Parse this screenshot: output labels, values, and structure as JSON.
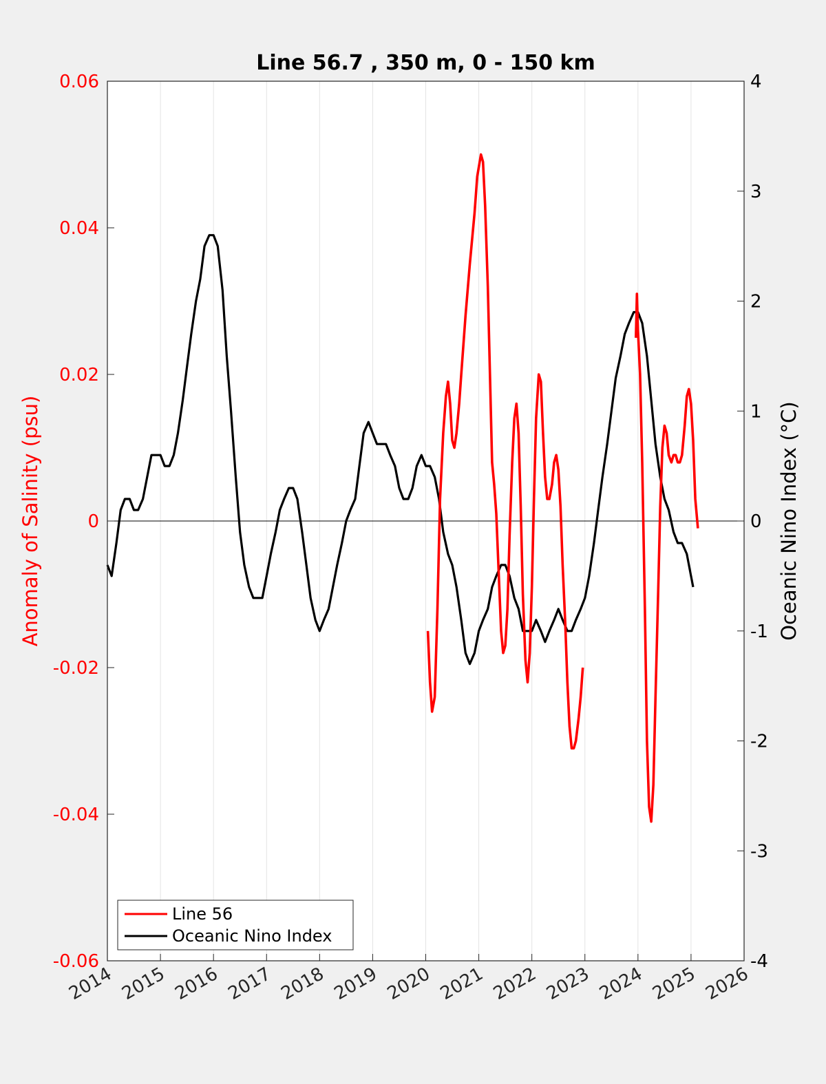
{
  "chart_data": {
    "type": "line",
    "title": "Line 56.7 , 350 m, 0 - 150 km",
    "ylabel_left": "Anomaly of Salinity (psu)",
    "ylabel_right": "Oceanic Nino Index (°C)",
    "xlabel": "",
    "xlim": [
      2014,
      2026
    ],
    "ylim_left": [
      -0.06,
      0.06
    ],
    "ylim_right": [
      -4,
      4
    ],
    "x_ticks": [
      "2014",
      "2015",
      "2016",
      "2017",
      "2018",
      "2019",
      "2020",
      "2021",
      "2022",
      "2023",
      "2024",
      "2025",
      "2026"
    ],
    "y_ticks_left": [
      "0.06",
      "0.04",
      "0.02",
      "0",
      "-0.02",
      "-0.04",
      "-0.06"
    ],
    "y_ticks_right": [
      "4",
      "3",
      "2",
      "1",
      "0",
      "-1",
      "-2",
      "-3",
      "-4"
    ],
    "grid": "vertical",
    "legend_position": "bottom-left",
    "colors": {
      "salinity": "#ff0000",
      "oni": "#000000",
      "left_axis": "#ff0000",
      "right_axis": "#000000",
      "background": "#f0f0f0",
      "plot_area": "#ffffff"
    },
    "series": [
      {
        "name": "Line 56",
        "axis": "left",
        "color": "#ff0000",
        "segments": [
          [
            [
              2020.04,
              -0.015
            ],
            [
              2020.08,
              -0.022
            ],
            [
              2020.12,
              -0.026
            ],
            [
              2020.17,
              -0.024
            ],
            [
              2020.22,
              -0.012
            ],
            [
              2020.27,
              0.003
            ],
            [
              2020.33,
              0.012
            ],
            [
              2020.38,
              0.017
            ],
            [
              2020.42,
              0.019
            ],
            [
              2020.46,
              0.016
            ],
            [
              2020.5,
              0.011
            ],
            [
              2020.54,
              0.01
            ],
            [
              2020.58,
              0.012
            ],
            [
              2020.63,
              0.016
            ],
            [
              2020.67,
              0.02
            ],
            [
              2020.75,
              0.028
            ],
            [
              2020.83,
              0.035
            ],
            [
              2020.92,
              0.042
            ],
            [
              2020.97,
              0.047
            ],
            [
              2021.04,
              0.05
            ],
            [
              2021.08,
              0.049
            ],
            [
              2021.12,
              0.043
            ],
            [
              2021.17,
              0.032
            ],
            [
              2021.21,
              0.02
            ],
            [
              2021.25,
              0.008
            ],
            [
              2021.29,
              0.005
            ],
            [
              2021.33,
              0.001
            ],
            [
              2021.38,
              -0.008
            ],
            [
              2021.42,
              -0.015
            ],
            [
              2021.46,
              -0.018
            ],
            [
              2021.5,
              -0.017
            ],
            [
              2021.54,
              -0.012
            ],
            [
              2021.58,
              -0.002
            ],
            [
              2021.63,
              0.008
            ],
            [
              2021.67,
              0.014
            ],
            [
              2021.71,
              0.016
            ],
            [
              2021.75,
              0.012
            ],
            [
              2021.79,
              0.002
            ],
            [
              2021.83,
              -0.01
            ],
            [
              2021.88,
              -0.019
            ],
            [
              2021.92,
              -0.022
            ],
            [
              2021.96,
              -0.018
            ],
            [
              2022.0,
              -0.009
            ],
            [
              2022.04,
              0.003
            ],
            [
              2022.08,
              0.014
            ],
            [
              2022.13,
              0.02
            ],
            [
              2022.17,
              0.019
            ],
            [
              2022.21,
              0.012
            ],
            [
              2022.25,
              0.006
            ],
            [
              2022.29,
              0.003
            ],
            [
              2022.33,
              0.003
            ],
            [
              2022.38,
              0.005
            ],
            [
              2022.42,
              0.008
            ],
            [
              2022.46,
              0.009
            ],
            [
              2022.5,
              0.007
            ],
            [
              2022.54,
              0.002
            ],
            [
              2022.58,
              -0.006
            ],
            [
              2022.63,
              -0.014
            ],
            [
              2022.67,
              -0.022
            ],
            [
              2022.71,
              -0.028
            ],
            [
              2022.75,
              -0.031
            ],
            [
              2022.79,
              -0.031
            ],
            [
              2022.83,
              -0.03
            ],
            [
              2022.88,
              -0.027
            ],
            [
              2022.92,
              -0.024
            ],
            [
              2022.96,
              -0.02
            ]
          ],
          [
            [
              2023.96,
              0.025
            ],
            [
              2023.98,
              0.031
            ],
            [
              2024.0,
              0.026
            ],
            [
              2024.04,
              0.02
            ],
            [
              2024.08,
              0.008
            ],
            [
              2024.13,
              -0.012
            ],
            [
              2024.17,
              -0.03
            ],
            [
              2024.21,
              -0.039
            ],
            [
              2024.25,
              -0.041
            ],
            [
              2024.29,
              -0.036
            ],
            [
              2024.33,
              -0.024
            ],
            [
              2024.38,
              -0.01
            ],
            [
              2024.42,
              0.002
            ],
            [
              2024.46,
              0.01
            ],
            [
              2024.5,
              0.013
            ],
            [
              2024.54,
              0.012
            ],
            [
              2024.58,
              0.009
            ],
            [
              2024.63,
              0.008
            ],
            [
              2024.67,
              0.009
            ],
            [
              2024.71,
              0.009
            ],
            [
              2024.75,
              0.008
            ],
            [
              2024.79,
              0.008
            ],
            [
              2024.83,
              0.009
            ],
            [
              2024.88,
              0.013
            ],
            [
              2024.92,
              0.017
            ],
            [
              2024.96,
              0.018
            ],
            [
              2025.0,
              0.016
            ],
            [
              2025.04,
              0.011
            ],
            [
              2025.08,
              0.003
            ],
            [
              2025.13,
              -0.001
            ]
          ]
        ]
      },
      {
        "name": "Oceanic Nino Index",
        "axis": "right",
        "color": "#000000",
        "points": [
          [
            2014.0,
            -0.4
          ],
          [
            2014.08,
            -0.5
          ],
          [
            2014.17,
            -0.2
          ],
          [
            2014.25,
            0.1
          ],
          [
            2014.33,
            0.2
          ],
          [
            2014.42,
            0.2
          ],
          [
            2014.5,
            0.1
          ],
          [
            2014.58,
            0.1
          ],
          [
            2014.67,
            0.2
          ],
          [
            2014.75,
            0.4
          ],
          [
            2014.83,
            0.6
          ],
          [
            2014.92,
            0.6
          ],
          [
            2015.0,
            0.6
          ],
          [
            2015.08,
            0.5
          ],
          [
            2015.17,
            0.5
          ],
          [
            2015.25,
            0.6
          ],
          [
            2015.33,
            0.8
          ],
          [
            2015.42,
            1.1
          ],
          [
            2015.5,
            1.4
          ],
          [
            2015.58,
            1.7
          ],
          [
            2015.67,
            2.0
          ],
          [
            2015.75,
            2.2
          ],
          [
            2015.83,
            2.5
          ],
          [
            2015.92,
            2.6
          ],
          [
            2016.0,
            2.6
          ],
          [
            2016.08,
            2.5
          ],
          [
            2016.17,
            2.1
          ],
          [
            2016.25,
            1.5
          ],
          [
            2016.33,
            1.0
          ],
          [
            2016.42,
            0.4
          ],
          [
            2016.5,
            -0.1
          ],
          [
            2016.58,
            -0.4
          ],
          [
            2016.67,
            -0.6
          ],
          [
            2016.75,
            -0.7
          ],
          [
            2016.83,
            -0.7
          ],
          [
            2016.92,
            -0.7
          ],
          [
            2017.0,
            -0.5
          ],
          [
            2017.08,
            -0.3
          ],
          [
            2017.17,
            -0.1
          ],
          [
            2017.25,
            0.1
          ],
          [
            2017.33,
            0.2
          ],
          [
            2017.42,
            0.3
          ],
          [
            2017.5,
            0.3
          ],
          [
            2017.58,
            0.2
          ],
          [
            2017.67,
            -0.1
          ],
          [
            2017.75,
            -0.4
          ],
          [
            2017.83,
            -0.7
          ],
          [
            2017.92,
            -0.9
          ],
          [
            2018.0,
            -1.0
          ],
          [
            2018.08,
            -0.9
          ],
          [
            2018.17,
            -0.8
          ],
          [
            2018.25,
            -0.6
          ],
          [
            2018.33,
            -0.4
          ],
          [
            2018.42,
            -0.2
          ],
          [
            2018.5,
            0.0
          ],
          [
            2018.58,
            0.1
          ],
          [
            2018.67,
            0.2
          ],
          [
            2018.75,
            0.5
          ],
          [
            2018.83,
            0.8
          ],
          [
            2018.92,
            0.9
          ],
          [
            2019.0,
            0.8
          ],
          [
            2019.08,
            0.7
          ],
          [
            2019.17,
            0.7
          ],
          [
            2019.25,
            0.7
          ],
          [
            2019.33,
            0.6
          ],
          [
            2019.42,
            0.5
          ],
          [
            2019.5,
            0.3
          ],
          [
            2019.58,
            0.2
          ],
          [
            2019.67,
            0.2
          ],
          [
            2019.75,
            0.3
          ],
          [
            2019.83,
            0.5
          ],
          [
            2019.92,
            0.6
          ],
          [
            2020.0,
            0.5
          ],
          [
            2020.08,
            0.5
          ],
          [
            2020.17,
            0.4
          ],
          [
            2020.25,
            0.2
          ],
          [
            2020.33,
            -0.1
          ],
          [
            2020.42,
            -0.3
          ],
          [
            2020.5,
            -0.4
          ],
          [
            2020.58,
            -0.6
          ],
          [
            2020.67,
            -0.9
          ],
          [
            2020.75,
            -1.2
          ],
          [
            2020.83,
            -1.3
          ],
          [
            2020.92,
            -1.2
          ],
          [
            2021.0,
            -1.0
          ],
          [
            2021.08,
            -0.9
          ],
          [
            2021.17,
            -0.8
          ],
          [
            2021.25,
            -0.6
          ],
          [
            2021.33,
            -0.5
          ],
          [
            2021.42,
            -0.4
          ],
          [
            2021.5,
            -0.4
          ],
          [
            2021.58,
            -0.5
          ],
          [
            2021.67,
            -0.7
          ],
          [
            2021.75,
            -0.8
          ],
          [
            2021.83,
            -1.0
          ],
          [
            2021.92,
            -1.0
          ],
          [
            2022.0,
            -1.0
          ],
          [
            2022.08,
            -0.9
          ],
          [
            2022.17,
            -1.0
          ],
          [
            2022.25,
            -1.1
          ],
          [
            2022.33,
            -1.0
          ],
          [
            2022.42,
            -0.9
          ],
          [
            2022.5,
            -0.8
          ],
          [
            2022.58,
            -0.9
          ],
          [
            2022.67,
            -1.0
          ],
          [
            2022.75,
            -1.0
          ],
          [
            2022.83,
            -0.9
          ],
          [
            2022.92,
            -0.8
          ],
          [
            2023.0,
            -0.7
          ],
          [
            2023.08,
            -0.5
          ],
          [
            2023.17,
            -0.2
          ],
          [
            2023.25,
            0.1
          ],
          [
            2023.33,
            0.4
          ],
          [
            2023.42,
            0.7
          ],
          [
            2023.5,
            1.0
          ],
          [
            2023.58,
            1.3
          ],
          [
            2023.67,
            1.5
          ],
          [
            2023.75,
            1.7
          ],
          [
            2023.83,
            1.8
          ],
          [
            2023.92,
            1.9
          ],
          [
            2024.0,
            1.9
          ],
          [
            2024.08,
            1.8
          ],
          [
            2024.17,
            1.5
          ],
          [
            2024.25,
            1.1
          ],
          [
            2024.33,
            0.7
          ],
          [
            2024.42,
            0.4
          ],
          [
            2024.5,
            0.2
          ],
          [
            2024.58,
            0.1
          ],
          [
            2024.67,
            -0.1
          ],
          [
            2024.75,
            -0.2
          ],
          [
            2024.83,
            -0.2
          ],
          [
            2024.92,
            -0.3
          ],
          [
            2025.0,
            -0.5
          ],
          [
            2025.04,
            -0.6
          ]
        ]
      }
    ]
  }
}
